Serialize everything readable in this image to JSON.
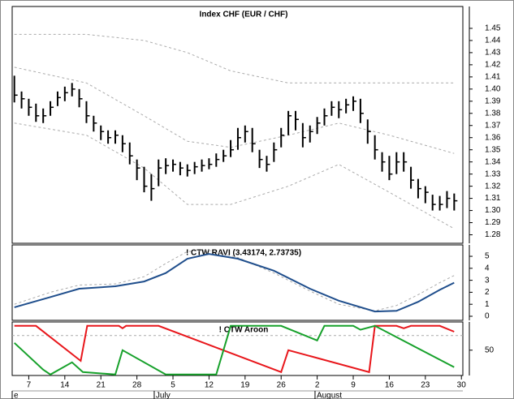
{
  "chart_data": [
    {
      "type": "ohlc",
      "title": "Index CHF (EUR / CHF)",
      "high": [
        1.411,
        1.398,
        1.392,
        1.388,
        1.384,
        1.39,
        1.398,
        1.402,
        1.405,
        1.4,
        1.39,
        1.378,
        1.37,
        1.366,
        1.366,
        1.362,
        1.356,
        1.342,
        1.336,
        1.33,
        1.342,
        1.343,
        1.342,
        1.34,
        1.338,
        1.34,
        1.342,
        1.343,
        1.347,
        1.35,
        1.358,
        1.368,
        1.37,
        1.368,
        1.35,
        1.345,
        1.356,
        1.368,
        1.382,
        1.382,
        1.372,
        1.37,
        1.377,
        1.384,
        1.39,
        1.39,
        1.392,
        1.394,
        1.392,
        1.375,
        1.362,
        1.348,
        1.345,
        1.348,
        1.348,
        1.336,
        1.326,
        1.32,
        1.313,
        1.312,
        1.316,
        1.314
      ],
      "low": [
        1.389,
        1.384,
        1.378,
        1.373,
        1.372,
        1.378,
        1.386,
        1.39,
        1.394,
        1.385,
        1.372,
        1.365,
        1.358,
        1.355,
        1.355,
        1.348,
        1.338,
        1.325,
        1.315,
        1.308,
        1.32,
        1.33,
        1.332,
        1.329,
        1.328,
        1.33,
        1.332,
        1.334,
        1.336,
        1.34,
        1.344,
        1.35,
        1.356,
        1.348,
        1.335,
        1.332,
        1.34,
        1.352,
        1.362,
        1.366,
        1.352,
        1.356,
        1.363,
        1.37,
        1.378,
        1.376,
        1.38,
        1.382,
        1.372,
        1.355,
        1.342,
        1.332,
        1.325,
        1.33,
        1.332,
        1.318,
        1.31,
        1.306,
        1.3,
        1.3,
        1.302,
        1.3
      ],
      "close": [
        1.395,
        1.392,
        1.385,
        1.378,
        1.378,
        1.385,
        1.393,
        1.397,
        1.4,
        1.392,
        1.378,
        1.372,
        1.365,
        1.36,
        1.362,
        1.355,
        1.345,
        1.335,
        1.32,
        1.318,
        1.335,
        1.337,
        1.338,
        1.335,
        1.333,
        1.336,
        1.337,
        1.338,
        1.342,
        1.345,
        1.35,
        1.36,
        1.365,
        1.355,
        1.342,
        1.338,
        1.35,
        1.362,
        1.378,
        1.375,
        1.36,
        1.365,
        1.372,
        1.378,
        1.385,
        1.383,
        1.387,
        1.39,
        1.38,
        1.365,
        1.35,
        1.34,
        1.33,
        1.34,
        1.34,
        1.325,
        1.318,
        1.315,
        1.305,
        1.305,
        1.31,
        1.308
      ],
      "color": "#000000",
      "bands": [
        {
          "color": "#aaaaaa",
          "x": [
            0,
            10,
            18,
            24,
            30,
            38,
            45,
            52,
            61
          ],
          "values": [
            1.445,
            1.445,
            1.44,
            1.43,
            1.415,
            1.405,
            1.405,
            1.405,
            1.405
          ]
        },
        {
          "color": "#aaaaaa",
          "x": [
            0,
            10,
            18,
            24,
            30,
            38,
            45,
            52,
            61
          ],
          "values": [
            1.418,
            1.405,
            1.378,
            1.357,
            1.352,
            1.362,
            1.372,
            1.362,
            1.347
          ]
        },
        {
          "color": "#aaaaaa",
          "x": [
            0,
            10,
            18,
            24,
            30,
            38,
            45,
            52,
            61
          ],
          "values": [
            1.372,
            1.362,
            1.335,
            1.305,
            1.305,
            1.32,
            1.338,
            1.315,
            1.285
          ]
        }
      ],
      "ylim": [
        1.273,
        1.468
      ],
      "yticks": [
        1.28,
        1.29,
        {
          "value": 1.3,
          "label": "1.30"
        },
        1.31,
        1.32,
        1.33,
        1.34,
        1.35,
        1.36,
        1.37,
        1.38,
        1.39,
        {
          "value": 1.4,
          "label": "1.40"
        },
        1.41,
        1.42,
        1.43,
        1.44,
        1.45
      ]
    },
    {
      "type": "line",
      "title": "! CTW RAVI (3.43174, 2.73735)",
      "series": [
        {
          "color": "#aaaaaa",
          "dashed": true,
          "x": [
            0,
            5,
            9,
            14,
            18,
            21,
            24,
            27,
            31,
            36,
            41,
            45,
            50,
            53,
            56,
            59,
            61
          ],
          "values": [
            1.0,
            2.0,
            2.6,
            2.7,
            3.3,
            4.4,
            5.4,
            5.5,
            4.9,
            3.6,
            2.1,
            1.0,
            0.45,
            0.9,
            1.8,
            2.8,
            3.4
          ]
        },
        {
          "color": "#1f4e8c",
          "dashed": false,
          "x": [
            0,
            5,
            9,
            14,
            18,
            21,
            24,
            27,
            31,
            36,
            41,
            45,
            50,
            53,
            56,
            59,
            61
          ],
          "values": [
            0.75,
            1.6,
            2.3,
            2.5,
            2.9,
            3.6,
            4.8,
            5.2,
            4.8,
            3.8,
            2.3,
            1.3,
            0.4,
            0.45,
            1.2,
            2.2,
            2.8
          ]
        }
      ],
      "ylim": [
        -0.34,
        5.95
      ],
      "yticks": [
        0,
        1,
        2,
        3,
        4,
        5
      ]
    },
    {
      "type": "line",
      "title": "! CTW Aroon",
      "series": [
        {
          "color": "#e8161b",
          "dashed": false,
          "x": [
            0,
            3,
            9.2,
            10.1,
            14.5,
            15,
            15.5,
            20,
            37,
            38,
            49.2,
            50,
            53,
            54,
            55,
            59,
            61
          ],
          "values": [
            100,
            100,
            28,
            100,
            100,
            95,
            100,
            100,
            5,
            50,
            5,
            100,
            100,
            95,
            100,
            100,
            88
          ]
        },
        {
          "color": "#17a12b",
          "dashed": false,
          "x": [
            0,
            4,
            5,
            8,
            9.5,
            14,
            15,
            21,
            28,
            30,
            37,
            42,
            43,
            47,
            48,
            50,
            61
          ],
          "values": [
            65,
            10,
            0,
            25,
            5,
            0,
            50,
            0,
            0,
            100,
            100,
            70,
            100,
            100,
            92,
            100,
            15
          ]
        }
      ],
      "reference": 80,
      "ylim": [
        -2,
        108
      ],
      "yticks": [
        50
      ]
    }
  ],
  "x_axis": {
    "xlim": [
      -0.3,
      62.2
    ],
    "xticks": [
      {
        "value": 2,
        "label": "7"
      },
      {
        "value": 7,
        "label": "14"
      },
      {
        "value": 12,
        "label": "21"
      },
      {
        "value": 17,
        "label": "28"
      },
      {
        "value": 22,
        "label": "5"
      },
      {
        "value": 27,
        "label": "12"
      },
      {
        "value": 32,
        "label": "19"
      },
      {
        "value": 37,
        "label": "26"
      },
      {
        "value": 42,
        "label": "2"
      },
      {
        "value": 47,
        "label": "9"
      },
      {
        "value": 52,
        "label": "16"
      },
      {
        "value": 57,
        "label": "23"
      },
      {
        "value": 62,
        "label": "30"
      }
    ],
    "months": [
      {
        "value": -0.3,
        "label": "e"
      },
      {
        "value": 19.4,
        "label": "July"
      },
      {
        "value": 41.7,
        "label": "August"
      }
    ]
  }
}
